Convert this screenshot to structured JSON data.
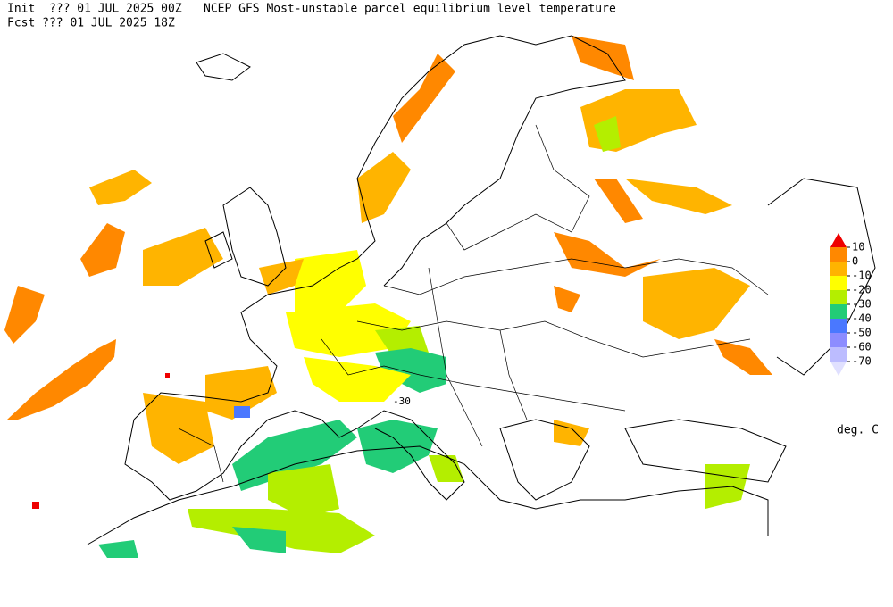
{
  "header": {
    "init": "Init  ??? 01 JUL 2025 00Z",
    "fcst": "Fcst ??? 01 JUL 2025 18Z",
    "title": "NCEP GFS Most-unstable parcel equilibrium level temperature"
  },
  "legend": {
    "ticks": [
      10,
      0,
      -10,
      -20,
      -30,
      -40,
      -50,
      -60,
      -70
    ],
    "colors": [
      "#ee0000",
      "#ff8800",
      "#ffb400",
      "#ffff00",
      "#b4ee00",
      "#22cc77",
      "#4a78ff",
      "#8c8cff",
      "#bcbcff",
      "#e0e0ff"
    ],
    "unit": "deg. C"
  },
  "map": {
    "contour_labels": [
      "-30"
    ]
  }
}
